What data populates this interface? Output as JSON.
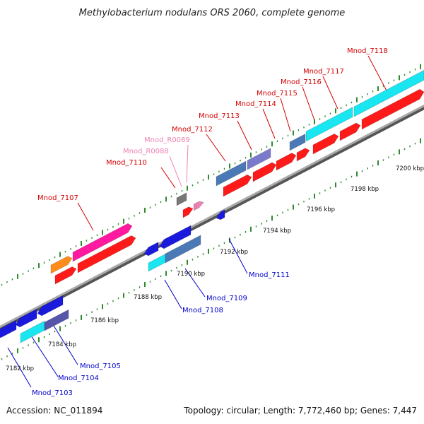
{
  "title": "Methylobacterium nodulans ORS 2060, complete genome",
  "accession": "Accession: NC_011894",
  "topology": "Topology: circular; Length: 7,772,460 bp; Genes: 7,447",
  "colors": {
    "forward_label": "#d40000",
    "reverse_label": "#0000cc",
    "rna_label": "#ee82b4",
    "backbone": "#888888",
    "tick": "#2e8b2e"
  },
  "ruler_upper": [
    "7200 kbp",
    "7198 kbp",
    "7196 kbp",
    "7194 kbp",
    "7192 kbp",
    "7190 kbp",
    "7188 kbp",
    "7186 kbp",
    "7184 kbp",
    "7182 kbp"
  ],
  "forward_labels": [
    "Mnod_7107",
    "Mnod_7110",
    "Mnod_R0088",
    "Mnod_R0089",
    "Mnod_7112",
    "Mnod_7113",
    "Mnod_7114",
    "Mnod_7115",
    "Mnod_7116",
    "Mnod_7117",
    "Mnod_7118"
  ],
  "reverse_labels": [
    "Mnod_7103",
    "Mnod_7104",
    "Mnod_7105",
    "Mnod_7108",
    "Mnod_7109",
    "Mnod_7111"
  ]
}
